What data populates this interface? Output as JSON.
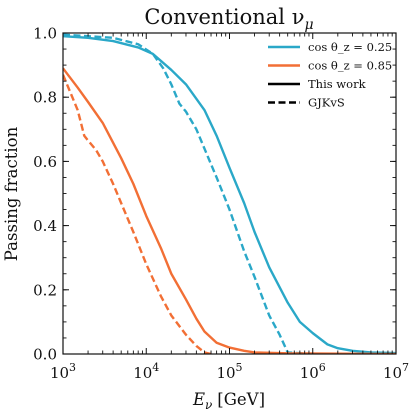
{
  "chart_data": {
    "type": "line",
    "title": "Conventional ν",
    "title_subscript": "μ",
    "xlabel": "E",
    "xlabel_subscript": "ν",
    "xlabel_unit": "[GeV]",
    "ylabel": "Passing fraction",
    "x_scale": "log",
    "xlim": [
      1000,
      10000000
    ],
    "ylim": [
      0.0,
      1.0
    ],
    "x_ticks": [
      {
        "value": 1000,
        "base": "10",
        "exp": "3"
      },
      {
        "value": 10000,
        "base": "10",
        "exp": "4"
      },
      {
        "value": 100000,
        "base": "10",
        "exp": "5"
      },
      {
        "value": 1000000,
        "base": "10",
        "exp": "6"
      },
      {
        "value": 10000000,
        "base": "10",
        "exp": "7"
      }
    ],
    "y_ticks": [
      {
        "value": 0.0,
        "label": "0.0"
      },
      {
        "value": 0.2,
        "label": "0.2"
      },
      {
        "value": 0.4,
        "label": "0.4"
      },
      {
        "value": 0.6,
        "label": "0.6"
      },
      {
        "value": 0.8,
        "label": "0.8"
      },
      {
        "value": 1.0,
        "label": "1.0"
      }
    ],
    "grid": false,
    "legend_position": "top-right",
    "legend": [
      {
        "label": "cos θ_z = 0.25",
        "color": "#2aa8c8",
        "style": "solid"
      },
      {
        "label": "cos θ_z = 0.85",
        "color": "#f26f35",
        "style": "solid"
      },
      {
        "label": "This work",
        "color": "#000000",
        "style": "solid"
      },
      {
        "label": "GJKvS",
        "color": "#000000",
        "style": "dashed"
      }
    ],
    "series": [
      {
        "legend_ref": "cos θ_z = 0.25 / This work",
        "color": "#2aa8c8",
        "style": "solid",
        "points": [
          [
            1000,
            0.99
          ],
          [
            2000,
            0.985
          ],
          [
            4000,
            0.975
          ],
          [
            8000,
            0.955
          ],
          [
            12000,
            0.935
          ],
          [
            20000,
            0.885
          ],
          [
            30000,
            0.84
          ],
          [
            50000,
            0.76
          ],
          [
            70000,
            0.68
          ],
          [
            100000,
            0.58
          ],
          [
            150000,
            0.47
          ],
          [
            200000,
            0.38
          ],
          [
            300000,
            0.27
          ],
          [
            500000,
            0.16
          ],
          [
            700000,
            0.1
          ],
          [
            1000000,
            0.065
          ],
          [
            1500000,
            0.03
          ],
          [
            2000000,
            0.018
          ],
          [
            3000000,
            0.01
          ],
          [
            5000000,
            0.005
          ],
          [
            10000000,
            0.003
          ]
        ]
      },
      {
        "legend_ref": "cos θ_z = 0.25 / GJKvS",
        "color": "#2aa8c8",
        "style": "dashed",
        "points": [
          [
            1000,
            0.995
          ],
          [
            2000,
            0.99
          ],
          [
            4000,
            0.985
          ],
          [
            8000,
            0.965
          ],
          [
            12000,
            0.935
          ],
          [
            16000,
            0.89
          ],
          [
            20000,
            0.84
          ],
          [
            25000,
            0.78
          ],
          [
            30000,
            0.755
          ],
          [
            40000,
            0.7
          ],
          [
            50000,
            0.64
          ],
          [
            70000,
            0.55
          ],
          [
            100000,
            0.45
          ],
          [
            150000,
            0.32
          ],
          [
            200000,
            0.24
          ],
          [
            300000,
            0.12
          ],
          [
            400000,
            0.06
          ],
          [
            500000,
            0.005
          ],
          [
            1000000,
            0.0
          ]
        ]
      },
      {
        "legend_ref": "cos θ_z = 0.85 / This work",
        "color": "#f26f35",
        "style": "solid",
        "points": [
          [
            1000,
            0.89
          ],
          [
            1500,
            0.83
          ],
          [
            2000,
            0.785
          ],
          [
            3000,
            0.72
          ],
          [
            5000,
            0.61
          ],
          [
            7000,
            0.53
          ],
          [
            10000,
            0.43
          ],
          [
            15000,
            0.33
          ],
          [
            20000,
            0.25
          ],
          [
            30000,
            0.17
          ],
          [
            40000,
            0.11
          ],
          [
            50000,
            0.07
          ],
          [
            70000,
            0.035
          ],
          [
            100000,
            0.02
          ],
          [
            150000,
            0.01
          ],
          [
            200000,
            0.005
          ],
          [
            500000,
            0.002
          ],
          [
            10000000,
            0.0
          ]
        ]
      },
      {
        "legend_ref": "cos θ_z = 0.85 / GJKvS",
        "color": "#f26f35",
        "style": "dashed",
        "points": [
          [
            1000,
            0.87
          ],
          [
            1500,
            0.76
          ],
          [
            1800,
            0.68
          ],
          [
            2000,
            0.665
          ],
          [
            2500,
            0.635
          ],
          [
            3000,
            0.6
          ],
          [
            4000,
            0.53
          ],
          [
            5000,
            0.47
          ],
          [
            7000,
            0.38
          ],
          [
            10000,
            0.28
          ],
          [
            15000,
            0.18
          ],
          [
            20000,
            0.12
          ],
          [
            30000,
            0.06
          ],
          [
            40000,
            0.025
          ],
          [
            50000,
            0.005
          ],
          [
            60000,
            0.0
          ]
        ]
      }
    ]
  }
}
